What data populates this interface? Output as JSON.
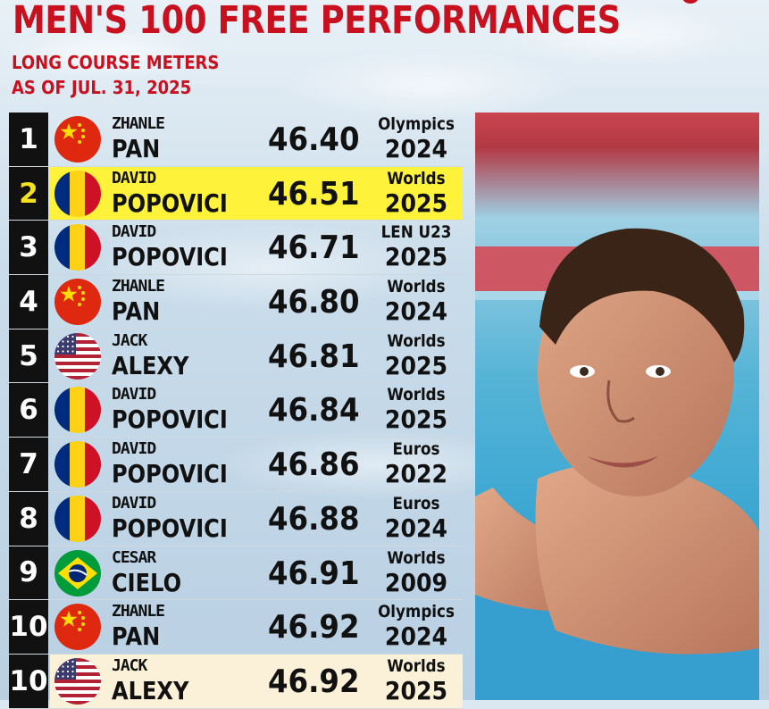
{
  "header": {
    "title": "MEN'S 100 FREE PERFORMANCES",
    "subtitle_1": "LONG COURSE METERS",
    "subtitle_2": "AS OF JUL. 31, 2025"
  },
  "colors": {
    "brand_red": "#c8101e",
    "highlight_yellow": "#fff23a",
    "highlight_cream": "#fbf1d8"
  },
  "rows": [
    {
      "rank": "1",
      "first": "ZHANLE",
      "last": "PAN",
      "time": "46.40",
      "meet": "Olympics",
      "year": "2024",
      "flag": "china-flag-icon",
      "highlight": ""
    },
    {
      "rank": "2",
      "first": "DAVID",
      "last": "POPOVICI",
      "time": "46.51",
      "meet": "Worlds",
      "year": "2025",
      "flag": "romania-flag-icon",
      "highlight": "yellow"
    },
    {
      "rank": "3",
      "first": "DAVID",
      "last": "POPOVICI",
      "time": "46.71",
      "meet": "LEN U23",
      "year": "2025",
      "flag": "romania-flag-icon",
      "highlight": ""
    },
    {
      "rank": "4",
      "first": "ZHANLE",
      "last": "PAN",
      "time": "46.80",
      "meet": "Worlds",
      "year": "2024",
      "flag": "china-flag-icon",
      "highlight": ""
    },
    {
      "rank": "5",
      "first": "JACK",
      "last": "ALEXY",
      "time": "46.81",
      "meet": "Worlds",
      "year": "2025",
      "flag": "usa-flag-icon",
      "highlight": ""
    },
    {
      "rank": "6",
      "first": "DAVID",
      "last": "POPOVICI",
      "time": "46.84",
      "meet": "Worlds",
      "year": "2025",
      "flag": "romania-flag-icon",
      "highlight": ""
    },
    {
      "rank": "7",
      "first": "DAVID",
      "last": "POPOVICI",
      "time": "46.86",
      "meet": "Euros",
      "year": "2022",
      "flag": "romania-flag-icon",
      "highlight": ""
    },
    {
      "rank": "8",
      "first": "DAVID",
      "last": "POPOVICI",
      "time": "46.88",
      "meet": "Euros",
      "year": "2024",
      "flag": "romania-flag-icon",
      "highlight": ""
    },
    {
      "rank": "9",
      "first": "CESAR",
      "last": "CIELO",
      "time": "46.91",
      "meet": "Worlds",
      "year": "2009",
      "flag": "brazil-flag-icon",
      "highlight": ""
    },
    {
      "rank": "10",
      "first": "ZHANLE",
      "last": "PAN",
      "time": "46.92",
      "meet": "Olympics",
      "year": "2024",
      "flag": "china-flag-icon",
      "highlight": ""
    },
    {
      "rank": "10",
      "first": "JACK",
      "last": "ALEXY",
      "time": "46.92",
      "meet": "Worlds",
      "year": "2025",
      "flag": "usa-flag-icon",
      "highlight": "cream"
    }
  ]
}
